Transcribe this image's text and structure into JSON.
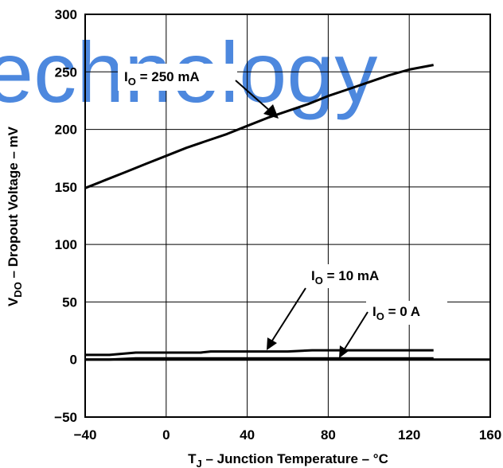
{
  "watermark": "echnology",
  "chart_data": {
    "type": "line",
    "title": "",
    "xlabel": {
      "main": "T",
      "sub": "J",
      "rest": " – Junction Temperature – °C"
    },
    "ylabel": {
      "main": "V",
      "sub": "DO",
      "rest": " – Dropout Voltage – mV"
    },
    "xlim": [
      -40,
      160
    ],
    "ylim": [
      -50,
      300
    ],
    "xticks": [
      -40,
      0,
      40,
      80,
      120,
      160
    ],
    "yticks": [
      300,
      250,
      200,
      150,
      100,
      50,
      0,
      -50
    ],
    "xtick_labels": [
      "−40",
      "0",
      "40",
      "80",
      "120",
      "160"
    ],
    "ytick_labels": [
      "300",
      "250",
      "200",
      "150",
      "100",
      "50",
      "0",
      "−50"
    ],
    "grid": true,
    "series": [
      {
        "name": "IO = 250 mA",
        "x": [
          -40,
          -30,
          -20,
          -10,
          0,
          10,
          20,
          30,
          40,
          50,
          60,
          70,
          80,
          90,
          100,
          110,
          120,
          132
        ],
        "y": [
          149,
          156,
          163,
          170,
          177,
          184,
          190,
          196,
          203,
          210,
          216,
          222,
          229,
          235,
          241,
          247,
          252,
          256
        ]
      },
      {
        "name": "IO = 10 mA",
        "x": [
          -40,
          -28,
          -15,
          17,
          22,
          60,
          72,
          132
        ],
        "y": [
          4,
          4,
          6,
          6,
          7,
          7,
          8,
          8
        ]
      },
      {
        "name": "IO = 0 A",
        "x": [
          -40,
          -28,
          -15,
          132
        ],
        "y": [
          0,
          0,
          1,
          1
        ]
      },
      {
        "name": "zero-line",
        "x": [
          -40,
          160
        ],
        "y": [
          0,
          0
        ]
      }
    ],
    "annotations": [
      {
        "main": "I",
        "sub": "O",
        "rest": " = 250 mA"
      },
      {
        "main": "I",
        "sub": "O",
        "rest": " = 10 mA"
      },
      {
        "main": "I",
        "sub": "O",
        "rest": " = 0 A"
      }
    ]
  }
}
